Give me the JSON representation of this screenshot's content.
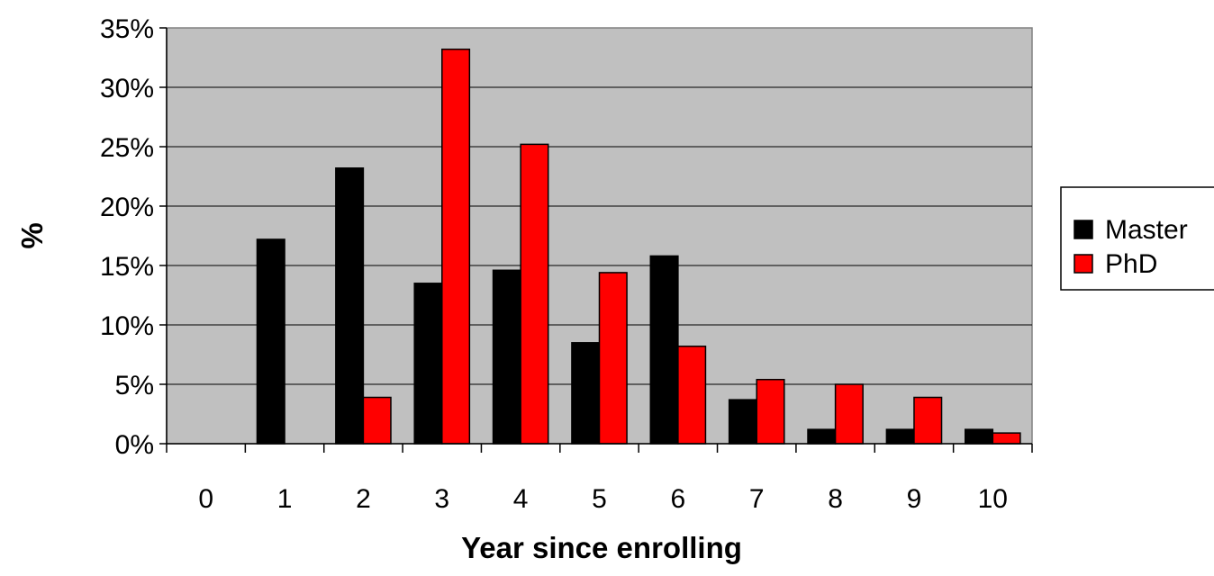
{
  "chart_data": {
    "type": "bar",
    "categories": [
      "0",
      "1",
      "2",
      "3",
      "4",
      "5",
      "6",
      "7",
      "8",
      "9",
      "10"
    ],
    "series": [
      {
        "name": "Master",
        "color": "#000000",
        "values": [
          0,
          17.2,
          23.2,
          13.5,
          14.6,
          8.5,
          15.8,
          3.7,
          1.2,
          1.2,
          1.2
        ]
      },
      {
        "name": "PhD",
        "color": "#ff0000",
        "values": [
          0,
          0,
          3.9,
          33.2,
          25.2,
          14.4,
          8.2,
          5.4,
          5.0,
          3.9,
          0.9
        ]
      }
    ],
    "xlabel": "Year since enrolling",
    "ylabel": "%",
    "ylim": [
      0,
      35
    ],
    "yticks": [
      "0%",
      "5%",
      "10%",
      "15%",
      "20%",
      "25%",
      "30%",
      "35%"
    ],
    "plot_background": "#c0c0c0",
    "grid": true,
    "legend_position": "right"
  }
}
